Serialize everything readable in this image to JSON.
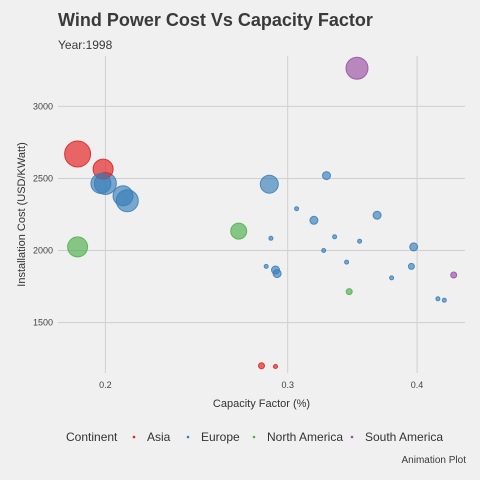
{
  "chart_data": {
    "type": "scatter",
    "title": "Wind Power Cost Vs Capacity Factor",
    "subtitle": "Year:1998",
    "xlabel": "Capacity Factor (%)",
    "ylabel": "Installation Cost (USD/KWatt)",
    "caption": "Animation Plot",
    "x_scale": "log",
    "xlim": [
      0.18,
      0.445
    ],
    "ylim": [
      1150,
      3350
    ],
    "x_ticks": [
      0.2,
      0.3,
      0.4
    ],
    "x_tick_labels": [
      "0.2",
      "0.3",
      "0.4"
    ],
    "y_ticks": [
      1500,
      2000,
      2500,
      3000
    ],
    "y_tick_labels": [
      "1500",
      "2000",
      "2500",
      "3000"
    ],
    "grid": true,
    "legend": {
      "title": "Continent",
      "position": "bottom",
      "entries": [
        "Asia",
        "Europe",
        "North America",
        "South America"
      ]
    },
    "colors": {
      "Asia": "#e41a1c",
      "Europe": "#377eb8",
      "North America": "#4daf4a",
      "South America": "#984ea3"
    },
    "points": [
      {
        "continent": "Asia",
        "x": 0.188,
        "y": 2670,
        "size": 12
      },
      {
        "continent": "Asia",
        "x": 0.199,
        "y": 2565,
        "size": 9
      },
      {
        "continent": "Asia",
        "x": 0.283,
        "y": 1200,
        "size": 2
      },
      {
        "continent": "Asia",
        "x": 0.292,
        "y": 1195,
        "size": 1
      },
      {
        "continent": "Europe",
        "x": 0.2,
        "y": 2465,
        "size": 10
      },
      {
        "continent": "Europe",
        "x": 0.198,
        "y": 2465,
        "size": 9
      },
      {
        "continent": "Europe",
        "x": 0.208,
        "y": 2380,
        "size": 9
      },
      {
        "continent": "Europe",
        "x": 0.21,
        "y": 2345,
        "size": 10
      },
      {
        "continent": "Europe",
        "x": 0.288,
        "y": 2460,
        "size": 8
      },
      {
        "continent": "Europe",
        "x": 0.327,
        "y": 2520,
        "size": 3
      },
      {
        "continent": "Europe",
        "x": 0.318,
        "y": 2210,
        "size": 3
      },
      {
        "continent": "Europe",
        "x": 0.366,
        "y": 2245,
        "size": 3
      },
      {
        "continent": "Europe",
        "x": 0.292,
        "y": 1865,
        "size": 3
      },
      {
        "continent": "Europe",
        "x": 0.293,
        "y": 1840,
        "size": 3
      },
      {
        "continent": "Europe",
        "x": 0.397,
        "y": 2025,
        "size": 3
      },
      {
        "continent": "Europe",
        "x": 0.395,
        "y": 1890,
        "size": 2
      },
      {
        "continent": "Europe",
        "x": 0.342,
        "y": 1920,
        "size": 1
      },
      {
        "continent": "Europe",
        "x": 0.378,
        "y": 1810,
        "size": 1
      },
      {
        "continent": "Europe",
        "x": 0.325,
        "y": 2000,
        "size": 1
      },
      {
        "continent": "Europe",
        "x": 0.286,
        "y": 1890,
        "size": 1
      },
      {
        "continent": "Europe",
        "x": 0.306,
        "y": 2290,
        "size": 1
      },
      {
        "continent": "Europe",
        "x": 0.333,
        "y": 2095,
        "size": 1
      },
      {
        "continent": "Europe",
        "x": 0.352,
        "y": 2065,
        "size": 1
      },
      {
        "continent": "Europe",
        "x": 0.289,
        "y": 2085,
        "size": 1
      },
      {
        "continent": "Europe",
        "x": 0.425,
        "y": 1655,
        "size": 1
      },
      {
        "continent": "Europe",
        "x": 0.419,
        "y": 1665,
        "size": 1
      },
      {
        "continent": "North America",
        "x": 0.188,
        "y": 2025,
        "size": 9
      },
      {
        "continent": "North America",
        "x": 0.269,
        "y": 2135,
        "size": 7
      },
      {
        "continent": "North America",
        "x": 0.344,
        "y": 1715,
        "size": 2
      },
      {
        "continent": "South America",
        "x": 0.35,
        "y": 3265,
        "size": 10
      },
      {
        "continent": "South America",
        "x": 0.434,
        "y": 1830,
        "size": 2
      }
    ]
  }
}
